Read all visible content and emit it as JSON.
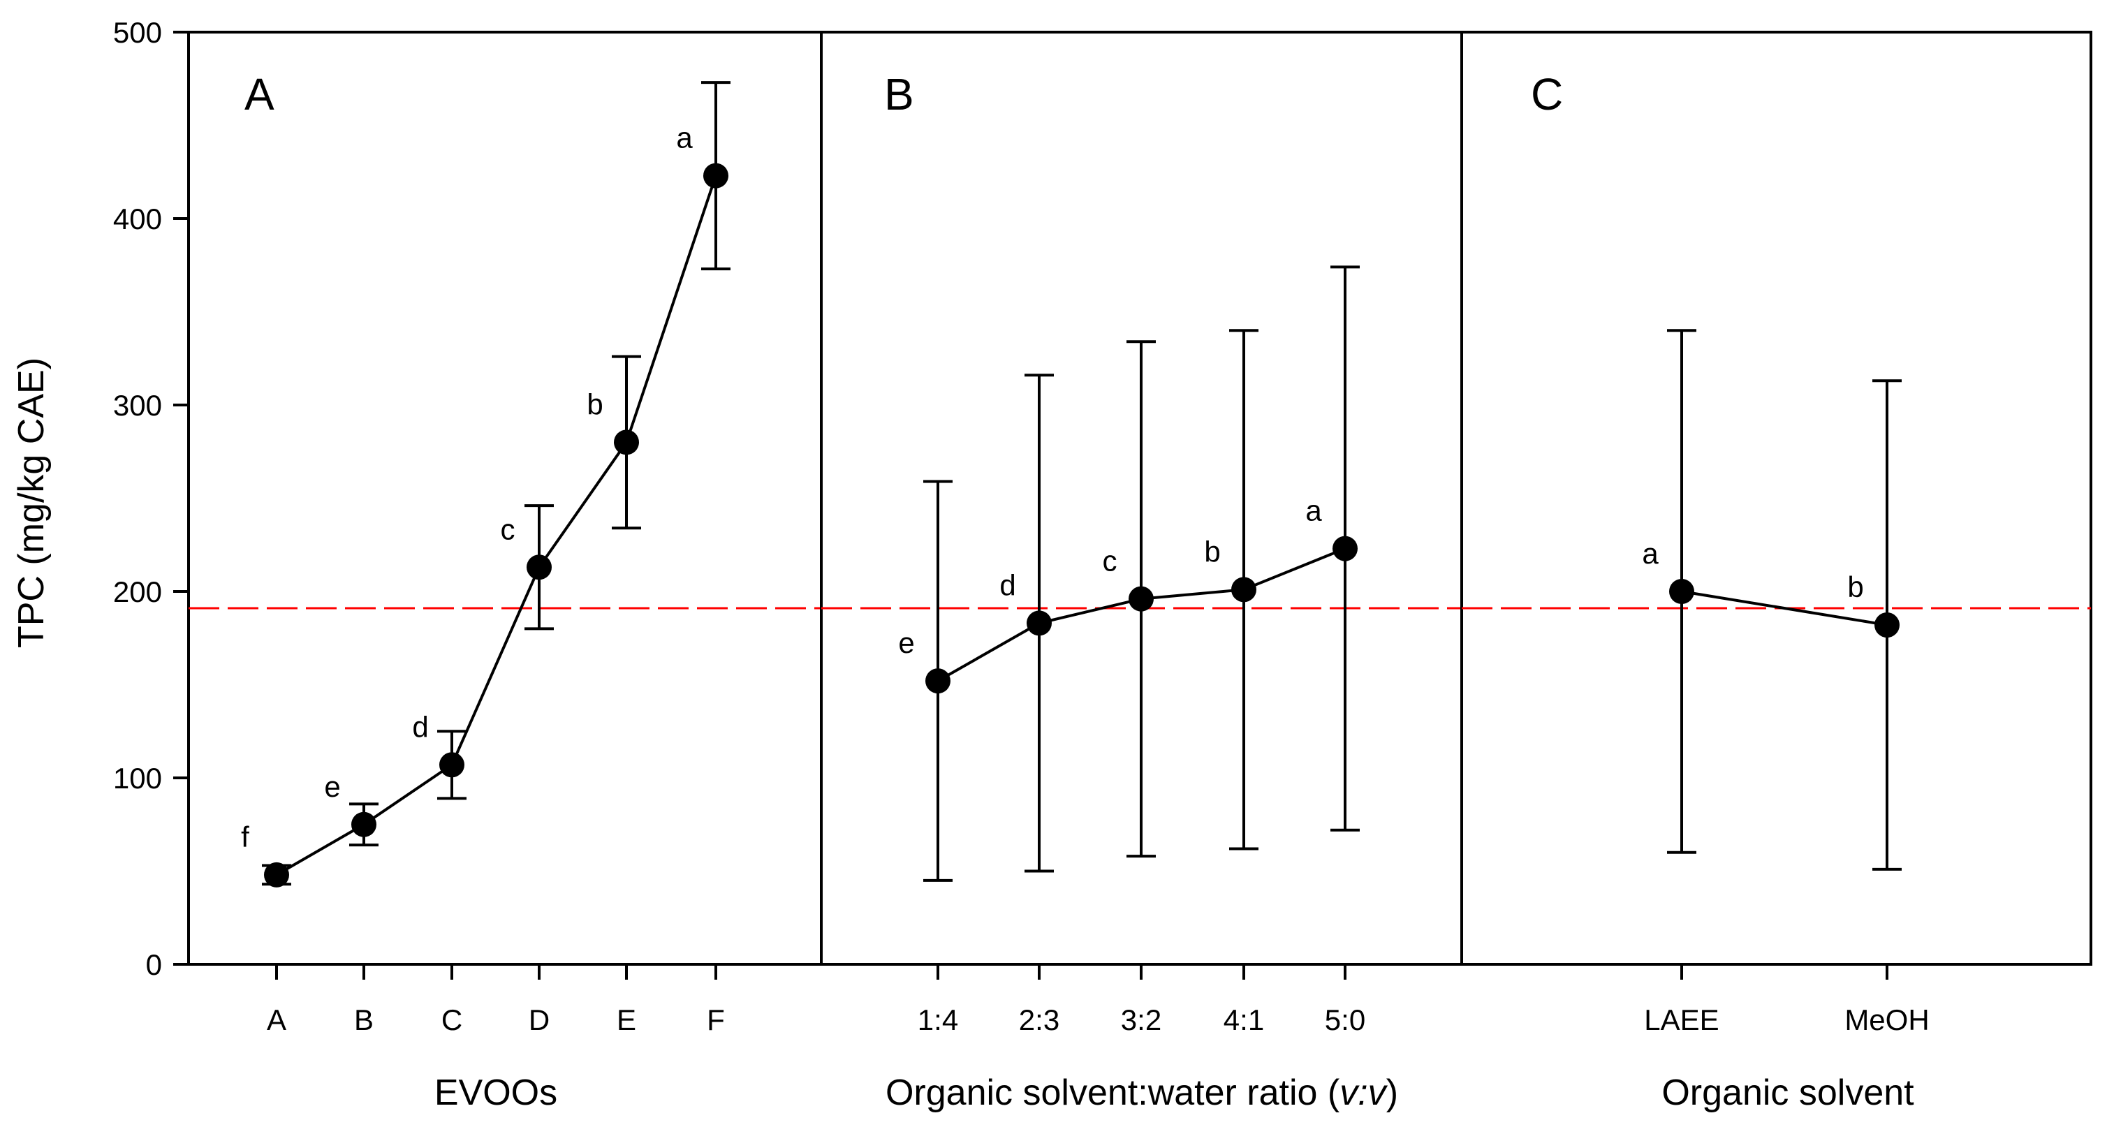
{
  "chart_data": {
    "type": "line",
    "ylabel": "TPC (mg/kg CAE)",
    "ylim": [
      0,
      500
    ],
    "yticks": [
      0,
      100,
      200,
      300,
      400,
      500
    ],
    "reference_line": {
      "y": 191,
      "color": "#ff0000",
      "style": "dashed"
    },
    "panels": [
      {
        "id": "A",
        "letter": "A",
        "xlabel": "EVOOs",
        "categories": [
          "A",
          "B",
          "C",
          "D",
          "E",
          "F"
        ],
        "values": [
          48,
          75,
          107,
          213,
          280,
          423
        ],
        "error": [
          5,
          11,
          18,
          33,
          46,
          50
        ],
        "labels": [
          "f",
          "e",
          "d",
          "c",
          "b",
          "a"
        ]
      },
      {
        "id": "B",
        "letter": "B",
        "xlabel": "Organic solvent:water ratio (",
        "xlabel_italic": "v:v",
        "xlabel_tail": ")",
        "categories": [
          "1:4",
          "2:3",
          "3:2",
          "4:1",
          "5:0"
        ],
        "values": [
          152,
          183,
          196,
          201,
          223
        ],
        "error": [
          107,
          133,
          138,
          139,
          151
        ],
        "labels": [
          "e",
          "d",
          "c",
          "b",
          "a"
        ]
      },
      {
        "id": "C",
        "letter": "C",
        "xlabel": "Organic solvent",
        "categories": [
          "LAEE",
          "MeOH"
        ],
        "values": [
          200,
          182
        ],
        "error": [
          140,
          131
        ],
        "labels": [
          "a",
          "b"
        ]
      }
    ],
    "colors": {
      "series": "#000000",
      "reference": "#ff0000"
    }
  }
}
